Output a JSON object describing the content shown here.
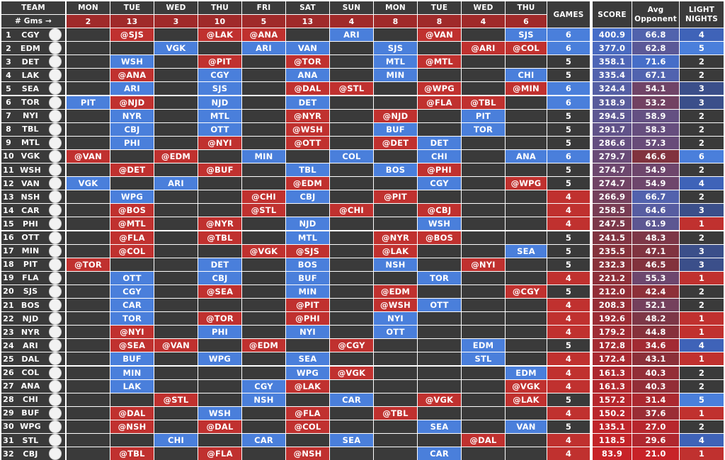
{
  "header": {
    "team": "TEAM",
    "gms_label": "# Gms →",
    "days": [
      "MON",
      "TUE",
      "WED",
      "THU",
      "FRI",
      "SAT",
      "SUN",
      "MON",
      "TUE",
      "WED",
      "THU"
    ],
    "day_game_counts": [
      "2",
      "13",
      "3",
      "10",
      "5",
      "13",
      "4",
      "8",
      "8",
      "4",
      "6"
    ],
    "games": "GAMES",
    "score": "SCORE",
    "avg_opponent": "Avg Opponent",
    "light_nights": "LIGHT NIGHTS"
  },
  "colors": {
    "home": "#4a7fdb",
    "away": "#c0312f",
    "empty": "#3a3a3a",
    "header": "#3b3b3b"
  },
  "rows": [
    {
      "rank": "1",
      "team": "CGY",
      "logo": "cgy-logo-icon",
      "sched": [
        "",
        "@SJS",
        "",
        "@LAK",
        "@ANA",
        "",
        "ARI",
        "",
        "@VAN",
        "",
        "SJS"
      ],
      "games": "6",
      "score": "400.9",
      "avg": "66.8",
      "light": "4"
    },
    {
      "rank": "2",
      "team": "EDM",
      "logo": "edm-logo-icon",
      "sched": [
        "",
        "",
        "VGK",
        "",
        "ARI",
        "VAN",
        "",
        "SJS",
        "",
        "@ARI",
        "@COL"
      ],
      "games": "6",
      "score": "377.0",
      "avg": "62.8",
      "light": "5"
    },
    {
      "rank": "3",
      "team": "DET",
      "logo": "det-logo-icon",
      "sched": [
        "",
        "WSH",
        "",
        "@PIT",
        "",
        "@TOR",
        "",
        "MTL",
        "@MTL",
        "",
        ""
      ],
      "games": "5",
      "score": "358.1",
      "avg": "71.6",
      "light": "2"
    },
    {
      "rank": "4",
      "team": "LAK",
      "logo": "lak-logo-icon",
      "sched": [
        "",
        "@ANA",
        "",
        "CGY",
        "",
        "ANA",
        "",
        "MIN",
        "",
        "",
        "CHI"
      ],
      "games": "5",
      "score": "335.4",
      "avg": "67.1",
      "light": "2"
    },
    {
      "rank": "5",
      "team": "SEA",
      "logo": "sea-logo-icon",
      "sched": [
        "",
        "ARI",
        "",
        "SJS",
        "",
        "@DAL",
        "@STL",
        "",
        "@WPG",
        "",
        "@MIN"
      ],
      "games": "6",
      "score": "324.4",
      "avg": "54.1",
      "light": "3"
    },
    {
      "rank": "6",
      "team": "TOR",
      "logo": "tor-logo-icon",
      "sched": [
        "PIT",
        "@NJD",
        "",
        "NJD",
        "",
        "DET",
        "",
        "",
        "@FLA",
        "@TBL",
        ""
      ],
      "games": "6",
      "score": "318.9",
      "avg": "53.2",
      "light": "3"
    },
    {
      "rank": "7",
      "team": "NYI",
      "logo": "nyi-logo-icon",
      "sched": [
        "",
        "NYR",
        "",
        "MTL",
        "",
        "@NYR",
        "",
        "@NJD",
        "",
        "PIT",
        ""
      ],
      "games": "5",
      "score": "294.5",
      "avg": "58.9",
      "light": "2"
    },
    {
      "rank": "8",
      "team": "TBL",
      "logo": "tbl-logo-icon",
      "sched": [
        "",
        "CBJ",
        "",
        "OTT",
        "",
        "@WSH",
        "",
        "BUF",
        "",
        "TOR",
        ""
      ],
      "games": "5",
      "score": "291.7",
      "avg": "58.3",
      "light": "2"
    },
    {
      "rank": "9",
      "team": "MTL",
      "logo": "mtl-logo-icon",
      "sched": [
        "",
        "PHI",
        "",
        "@NYI",
        "",
        "@OTT",
        "",
        "@DET",
        "DET",
        "",
        ""
      ],
      "games": "5",
      "score": "286.6",
      "avg": "57.3",
      "light": "2"
    },
    {
      "rank": "10",
      "team": "VGK",
      "logo": "vgk-logo-icon",
      "sched": [
        "@VAN",
        "",
        "@EDM",
        "",
        "MIN",
        "",
        "COL",
        "",
        "CHI",
        "",
        "ANA"
      ],
      "games": "6",
      "score": "279.7",
      "avg": "46.6",
      "light": "6"
    },
    {
      "rank": "11",
      "team": "WSH",
      "logo": "wsh-logo-icon",
      "sched": [
        "",
        "@DET",
        "",
        "@BUF",
        "",
        "TBL",
        "",
        "BOS",
        "@PHI",
        "",
        ""
      ],
      "games": "5",
      "score": "274.7",
      "avg": "54.9",
      "light": "2"
    },
    {
      "rank": "12",
      "team": "VAN",
      "logo": "van-logo-icon",
      "sched": [
        "VGK",
        "",
        "ARI",
        "",
        "",
        "@EDM",
        "",
        "",
        "CGY",
        "",
        "@WPG"
      ],
      "games": "5",
      "score": "274.7",
      "avg": "54.9",
      "light": "4"
    },
    {
      "rank": "13",
      "team": "NSH",
      "logo": "nsh-logo-icon",
      "sched": [
        "",
        "WPG",
        "",
        "",
        "@CHI",
        "CBJ",
        "",
        "@PIT",
        "",
        "",
        ""
      ],
      "games": "4",
      "score": "266.9",
      "avg": "66.7",
      "light": "2"
    },
    {
      "rank": "14",
      "team": "CAR",
      "logo": "car-logo-icon",
      "sched": [
        "",
        "@BOS",
        "",
        "",
        "@STL",
        "",
        "@CHI",
        "",
        "@CBJ",
        "",
        ""
      ],
      "games": "4",
      "score": "258.5",
      "avg": "64.6",
      "light": "3"
    },
    {
      "rank": "15",
      "team": "PHI",
      "logo": "phi-logo-icon",
      "sched": [
        "",
        "@MTL",
        "",
        "@NYR",
        "",
        "NJD",
        "",
        "",
        "WSH",
        "",
        ""
      ],
      "games": "4",
      "score": "247.5",
      "avg": "61.9",
      "light": "1"
    },
    {
      "rank": "16",
      "team": "OTT",
      "logo": "ott-logo-icon",
      "sched": [
        "",
        "@FLA",
        "",
        "@TBL",
        "",
        "MTL",
        "",
        "@NYR",
        "@BOS",
        "",
        ""
      ],
      "games": "5",
      "score": "241.5",
      "avg": "48.3",
      "light": "2"
    },
    {
      "rank": "17",
      "team": "MIN",
      "logo": "min-logo-icon",
      "sched": [
        "",
        "@COL",
        "",
        "",
        "@VGK",
        "@SJS",
        "",
        "@LAK",
        "",
        "",
        "SEA"
      ],
      "games": "5",
      "score": "235.5",
      "avg": "47.1",
      "light": "3"
    },
    {
      "rank": "18",
      "team": "PIT",
      "logo": "pit-logo-icon",
      "sched": [
        "@TOR",
        "",
        "",
        "DET",
        "",
        "BOS",
        "",
        "NSH",
        "",
        "@NYI",
        ""
      ],
      "games": "5",
      "score": "232.3",
      "avg": "46.5",
      "light": "3"
    },
    {
      "rank": "19",
      "team": "FLA",
      "logo": "fla-logo-icon",
      "sched": [
        "",
        "OTT",
        "",
        "CBJ",
        "",
        "BUF",
        "",
        "",
        "TOR",
        "",
        ""
      ],
      "games": "4",
      "score": "221.2",
      "avg": "55.3",
      "light": "1"
    },
    {
      "rank": "20",
      "team": "SJS",
      "logo": "sjs-logo-icon",
      "sched": [
        "",
        "CGY",
        "",
        "@SEA",
        "",
        "MIN",
        "",
        "@EDM",
        "",
        "",
        "@CGY"
      ],
      "games": "5",
      "score": "212.0",
      "avg": "42.4",
      "light": "2"
    },
    {
      "rank": "21",
      "team": "BOS",
      "logo": "bos-logo-icon",
      "sched": [
        "",
        "CAR",
        "",
        "",
        "",
        "@PIT",
        "",
        "@WSH",
        "OTT",
        "",
        ""
      ],
      "games": "4",
      "score": "208.3",
      "avg": "52.1",
      "light": "2"
    },
    {
      "rank": "22",
      "team": "NJD",
      "logo": "njd-logo-icon",
      "sched": [
        "",
        "TOR",
        "",
        "@TOR",
        "",
        "@PHI",
        "",
        "NYI",
        "",
        "",
        ""
      ],
      "games": "4",
      "score": "192.6",
      "avg": "48.2",
      "light": "1"
    },
    {
      "rank": "23",
      "team": "NYR",
      "logo": "nyr-logo-icon",
      "sched": [
        "",
        "@NYI",
        "",
        "PHI",
        "",
        "NYI",
        "",
        "OTT",
        "",
        "",
        ""
      ],
      "games": "4",
      "score": "179.2",
      "avg": "44.8",
      "light": "1"
    },
    {
      "rank": "24",
      "team": "ARI",
      "logo": "ari-logo-icon",
      "sched": [
        "",
        "@SEA",
        "@VAN",
        "",
        "@EDM",
        "",
        "@CGY",
        "",
        "",
        "EDM",
        ""
      ],
      "games": "5",
      "score": "172.8",
      "avg": "34.6",
      "light": "4"
    },
    {
      "rank": "25",
      "team": "DAL",
      "logo": "dal-logo-icon",
      "sched": [
        "",
        "BUF",
        "",
        "WPG",
        "",
        "SEA",
        "",
        "",
        "",
        "STL",
        ""
      ],
      "games": "4",
      "score": "172.4",
      "avg": "43.1",
      "light": "1"
    },
    {
      "rank": "26",
      "team": "COL",
      "logo": "col-logo-icon",
      "sched": [
        "",
        "MIN",
        "",
        "",
        "",
        "WPG",
        "@VGK",
        "",
        "",
        "",
        "EDM"
      ],
      "games": "4",
      "score": "161.3",
      "avg": "40.3",
      "light": "2"
    },
    {
      "rank": "27",
      "team": "ANA",
      "logo": "ana-logo-icon",
      "sched": [
        "",
        "LAK",
        "",
        "",
        "CGY",
        "@LAK",
        "",
        "",
        "",
        "",
        "@VGK"
      ],
      "games": "4",
      "score": "161.3",
      "avg": "40.3",
      "light": "2"
    },
    {
      "rank": "28",
      "team": "CHI",
      "logo": "chi-logo-icon",
      "sched": [
        "",
        "",
        "@STL",
        "",
        "NSH",
        "",
        "CAR",
        "",
        "@VGK",
        "",
        "@LAK"
      ],
      "games": "5",
      "score": "157.2",
      "avg": "31.4",
      "light": "5"
    },
    {
      "rank": "29",
      "team": "BUF",
      "logo": "buf-logo-icon",
      "sched": [
        "",
        "@DAL",
        "",
        "WSH",
        "",
        "@FLA",
        "",
        "@TBL",
        "",
        "",
        ""
      ],
      "games": "4",
      "score": "150.2",
      "avg": "37.6",
      "light": "1"
    },
    {
      "rank": "30",
      "team": "WPG",
      "logo": "wpg-logo-icon",
      "sched": [
        "",
        "@NSH",
        "",
        "@DAL",
        "",
        "@COL",
        "",
        "",
        "SEA",
        "",
        "VAN"
      ],
      "games": "5",
      "score": "135.1",
      "avg": "27.0",
      "light": "2"
    },
    {
      "rank": "31",
      "team": "STL",
      "logo": "stl-logo-icon",
      "sched": [
        "",
        "",
        "CHI",
        "",
        "CAR",
        "",
        "SEA",
        "",
        "",
        "@DAL",
        ""
      ],
      "games": "4",
      "score": "118.5",
      "avg": "29.6",
      "light": "4"
    },
    {
      "rank": "32",
      "team": "CBJ",
      "logo": "cbj-logo-icon",
      "sched": [
        "",
        "@TBL",
        "",
        "@FLA",
        "",
        "@NSH",
        "",
        "",
        "CAR",
        "",
        ""
      ],
      "games": "4",
      "score": "83.9",
      "avg": "21.0",
      "light": "1"
    }
  ]
}
